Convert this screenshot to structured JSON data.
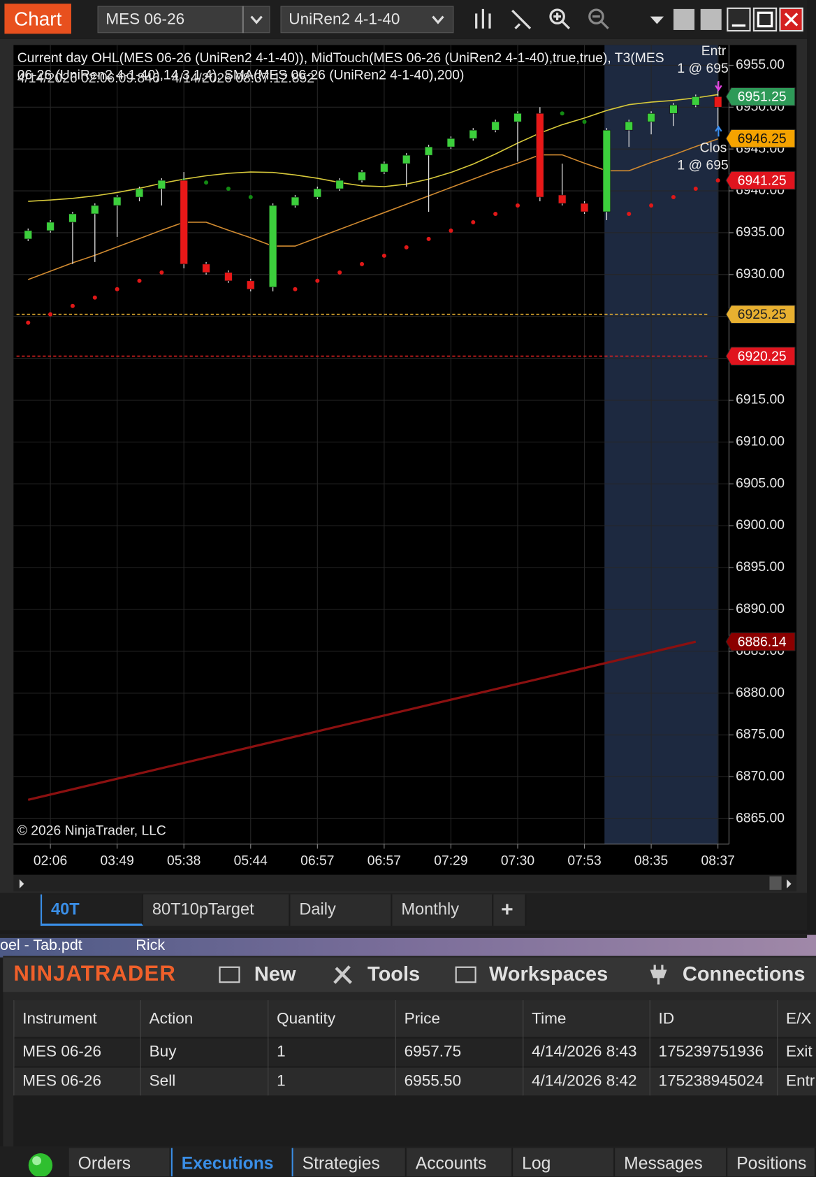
{
  "toolbar": {
    "chart_button": "Chart",
    "instrument": "MES 06-26",
    "bar_type": "UniRen2 4-1-40"
  },
  "chart_data": {
    "type": "candlestick",
    "indicator_legend": [
      "Current day OHL(MES 06-26 (UniRen2 4-1-40)), MidTouch(MES 06-26 (UniRen2 4-1-40),true,true), T3(MES",
      "06-26 (UniRen2 4-1-40),14,3,1,4), SMA(MES 06-26 (UniRen2 4-1-40),200)"
    ],
    "date_range": "4/14/2026 02:06:09.846 - 4/14/2026 08:37:12.852",
    "copyright": "© 2026 NinjaTrader, LLC",
    "annotations": [
      "Entr",
      "1 @ 695",
      "Clos",
      "1 @ 695"
    ],
    "categories": [
      null,
      "02:06",
      null,
      null,
      "03:49",
      null,
      null,
      "05:38",
      null,
      null,
      "05:44",
      null,
      null,
      "06:57",
      null,
      null,
      "06:57",
      null,
      null,
      "07:29",
      null,
      null,
      "07:30",
      null,
      null,
      "07:53",
      null,
      null,
      "08:35",
      null,
      null,
      "08:37"
    ],
    "open": [
      6934.25,
      6935.25,
      6936.25,
      6937.25,
      6938.25,
      6939.25,
      6940.25,
      6941.25,
      6931.25,
      6930.25,
      6929.25,
      6928.5,
      6938.25,
      6939.25,
      6940.25,
      6941.25,
      6942.25,
      6943.25,
      6944.25,
      6945.25,
      6946.25,
      6947.25,
      6948.25,
      6949.25,
      6939.5,
      6938.5,
      6937.5,
      6947.25,
      6948.25,
      6949.25,
      6950.25,
      6951.25
    ],
    "high": [
      6935.5,
      6936.5,
      6937.5,
      6938.5,
      6939.5,
      6940.5,
      6941.5,
      6942.25,
      6931.5,
      6930.5,
      6929.5,
      6938.5,
      6939.5,
      6940.5,
      6941.5,
      6942.5,
      6943.5,
      6944.5,
      6945.5,
      6946.5,
      6947.5,
      6948.5,
      6949.5,
      6950.0,
      6943.25,
      6938.75,
      6947.5,
      6948.5,
      6949.5,
      6950.5,
      6951.5,
      6953.0
    ],
    "low": [
      6934.0,
      6935.0,
      6931.25,
      6931.5,
      6934.5,
      6938.75,
      6938.25,
      6930.75,
      6930.0,
      6929.0,
      6928.0,
      6928.0,
      6938.0,
      6939.0,
      6940.0,
      6941.0,
      6942.0,
      6940.5,
      6937.5,
      6945.0,
      6946.0,
      6947.0,
      6943.5,
      6938.75,
      6938.25,
      6937.25,
      6936.5,
      6945.25,
      6946.75,
      6947.75,
      6950.0,
      6947.5
    ],
    "close": [
      6935.25,
      6936.25,
      6937.25,
      6938.25,
      6939.25,
      6940.25,
      6941.25,
      6931.25,
      6930.25,
      6929.25,
      6928.25,
      6938.25,
      6939.25,
      6940.25,
      6941.25,
      6942.25,
      6943.25,
      6944.25,
      6945.25,
      6946.25,
      6947.25,
      6948.25,
      6949.25,
      6939.25,
      6938.5,
      6937.5,
      6947.25,
      6948.25,
      6949.25,
      6950.25,
      6951.25,
      6950.0
    ],
    "up_color": "#3ccf3c",
    "down_color": "#e81818",
    "t3": {
      "color": "#d6c83a",
      "values": [
        6938.75,
        6938.9,
        6939.1,
        6939.4,
        6939.8,
        6940.3,
        6940.9,
        6941.4,
        6941.8,
        6942.1,
        6942.25,
        6942.2,
        6941.9,
        6941.5,
        6941.0,
        6940.6,
        6940.5,
        6940.8,
        6941.4,
        6942.2,
        6943.2,
        6944.4,
        6945.7,
        6946.9,
        6947.9,
        6948.7,
        6949.6,
        6950.3,
        6950.6,
        6950.8,
        6951.1,
        6951.5
      ]
    },
    "sma": {
      "color": "#d08a30",
      "values": [
        6929.4,
        6930.4,
        6931.4,
        6932.3,
        6933.3,
        6934.3,
        6935.3,
        6936.25,
        6936.25,
        6935.3,
        6934.4,
        6933.4,
        6933.4,
        6934.4,
        6935.4,
        6936.4,
        6937.4,
        6938.4,
        6939.4,
        6940.4,
        6941.4,
        6942.4,
        6943.3,
        6944.3,
        6944.3,
        6943.3,
        6942.4,
        6942.4,
        6943.4,
        6944.3,
        6945.3,
        6946.2
      ]
    },
    "midtouch": {
      "values": [
        6924.25,
        6925.25,
        6926.25,
        6927.25,
        6928.25,
        6929.25,
        6930.25,
        6941.25,
        6941.0,
        6940.25,
        6939.25,
        null,
        6928.25,
        6929.25,
        6930.25,
        6931.25,
        6932.25,
        6933.25,
        6934.25,
        6935.25,
        6936.25,
        6937.25,
        6938.25,
        null,
        6949.25,
        6948.25,
        null,
        6937.25,
        6938.25,
        6939.25,
        6940.25,
        6941.25
      ],
      "colors": [
        "#e01818",
        "#e01818",
        "#e01818",
        "#e01818",
        "#e01818",
        "#e01818",
        "#e01818",
        "#138a13",
        "#138a13",
        "#138a13",
        "#138a13",
        null,
        "#e01818",
        "#e01818",
        "#e01818",
        "#e01818",
        "#e01818",
        "#e01818",
        "#e01818",
        "#e01818",
        "#e01818",
        "#e01818",
        "#e01818",
        null,
        "#138a13",
        "#138a13",
        null,
        "#e01818",
        "#e01818",
        "#e01818",
        "#e01818",
        "#e01818"
      ]
    },
    "levels": [
      {
        "value": 6925.25,
        "color": "#e8b030"
      },
      {
        "value": 6920.25,
        "color": "#e02020"
      }
    ],
    "trend_line": {
      "color": "#8b1010",
      "values": [
        6867.25,
        6886.14
      ]
    },
    "price_tags": [
      {
        "value": 6951.25,
        "color": "#2e9a58",
        "text_color": "#ffffff"
      },
      {
        "value": 6946.25,
        "color": "#f5a300",
        "text_color": "#111111"
      },
      {
        "value": 6941.25,
        "color": "#e0141e",
        "text_color": "#ffffff"
      },
      {
        "value": 6925.25,
        "color": "#e8b030",
        "text_color": "#222222"
      },
      {
        "value": 6920.25,
        "color": "#e0141e",
        "text_color": "#ffffff"
      },
      {
        "value": 6886.14,
        "color": "#8b0000",
        "text_color": "#ffffff"
      }
    ],
    "ylim": [
      6861.96,
      6957.42
    ],
    "yticks": [
      {
        "value": 6955,
        "label": "6955.00"
      },
      {
        "value": 6950,
        "label": "6950.00"
      },
      {
        "value": 6945,
        "label": "6945.00"
      },
      {
        "value": 6940,
        "label": "6940.00"
      },
      {
        "value": 6935,
        "label": "6935.00"
      },
      {
        "value": 6930,
        "label": "6930.00"
      },
      {
        "value": 6925,
        "label": "6925.00"
      },
      {
        "value": 6920,
        "label": "6920.00"
      },
      {
        "value": 6915,
        "label": "6915.00"
      },
      {
        "value": 6910,
        "label": "6910.00"
      },
      {
        "value": 6905,
        "label": "6905.00"
      },
      {
        "value": 6900,
        "label": "6900.00"
      },
      {
        "value": 6895,
        "label": "6895.00"
      },
      {
        "value": 6890,
        "label": "6890.00"
      },
      {
        "value": 6885,
        "label": "6885.00"
      },
      {
        "value": 6880,
        "label": "6880.00"
      },
      {
        "value": 6875,
        "label": "6875.00"
      },
      {
        "value": 6870,
        "label": "6870.00"
      },
      {
        "value": 6865,
        "label": "6865.00"
      }
    ],
    "grid": true
  },
  "chart_tabs": [
    "40T",
    "80T10pTarget",
    "Daily",
    "Monthly",
    "+"
  ],
  "desktop": [
    "oel - Tab.pdt",
    "Rick"
  ],
  "control_center": {
    "logo": "NINJATRADER",
    "menu": [
      "New",
      "Tools",
      "Workspaces",
      "Connections"
    ],
    "table": {
      "headers": [
        "Instrument",
        "Action",
        "Quantity",
        "Price",
        "Time",
        "ID",
        "E/X"
      ],
      "rows": [
        [
          "MES 06-26",
          "Buy",
          "1",
          "6957.75",
          "4/14/2026 8:43",
          "175239751936",
          "Exit"
        ],
        [
          "MES 06-26",
          "Sell",
          "1",
          "6955.50",
          "4/14/2026 8:42",
          "175238945024",
          "Entr"
        ]
      ]
    },
    "tabs": [
      "Orders",
      "Executions",
      "Strategies",
      "Accounts",
      "Log",
      "Messages",
      "Positions"
    ]
  }
}
